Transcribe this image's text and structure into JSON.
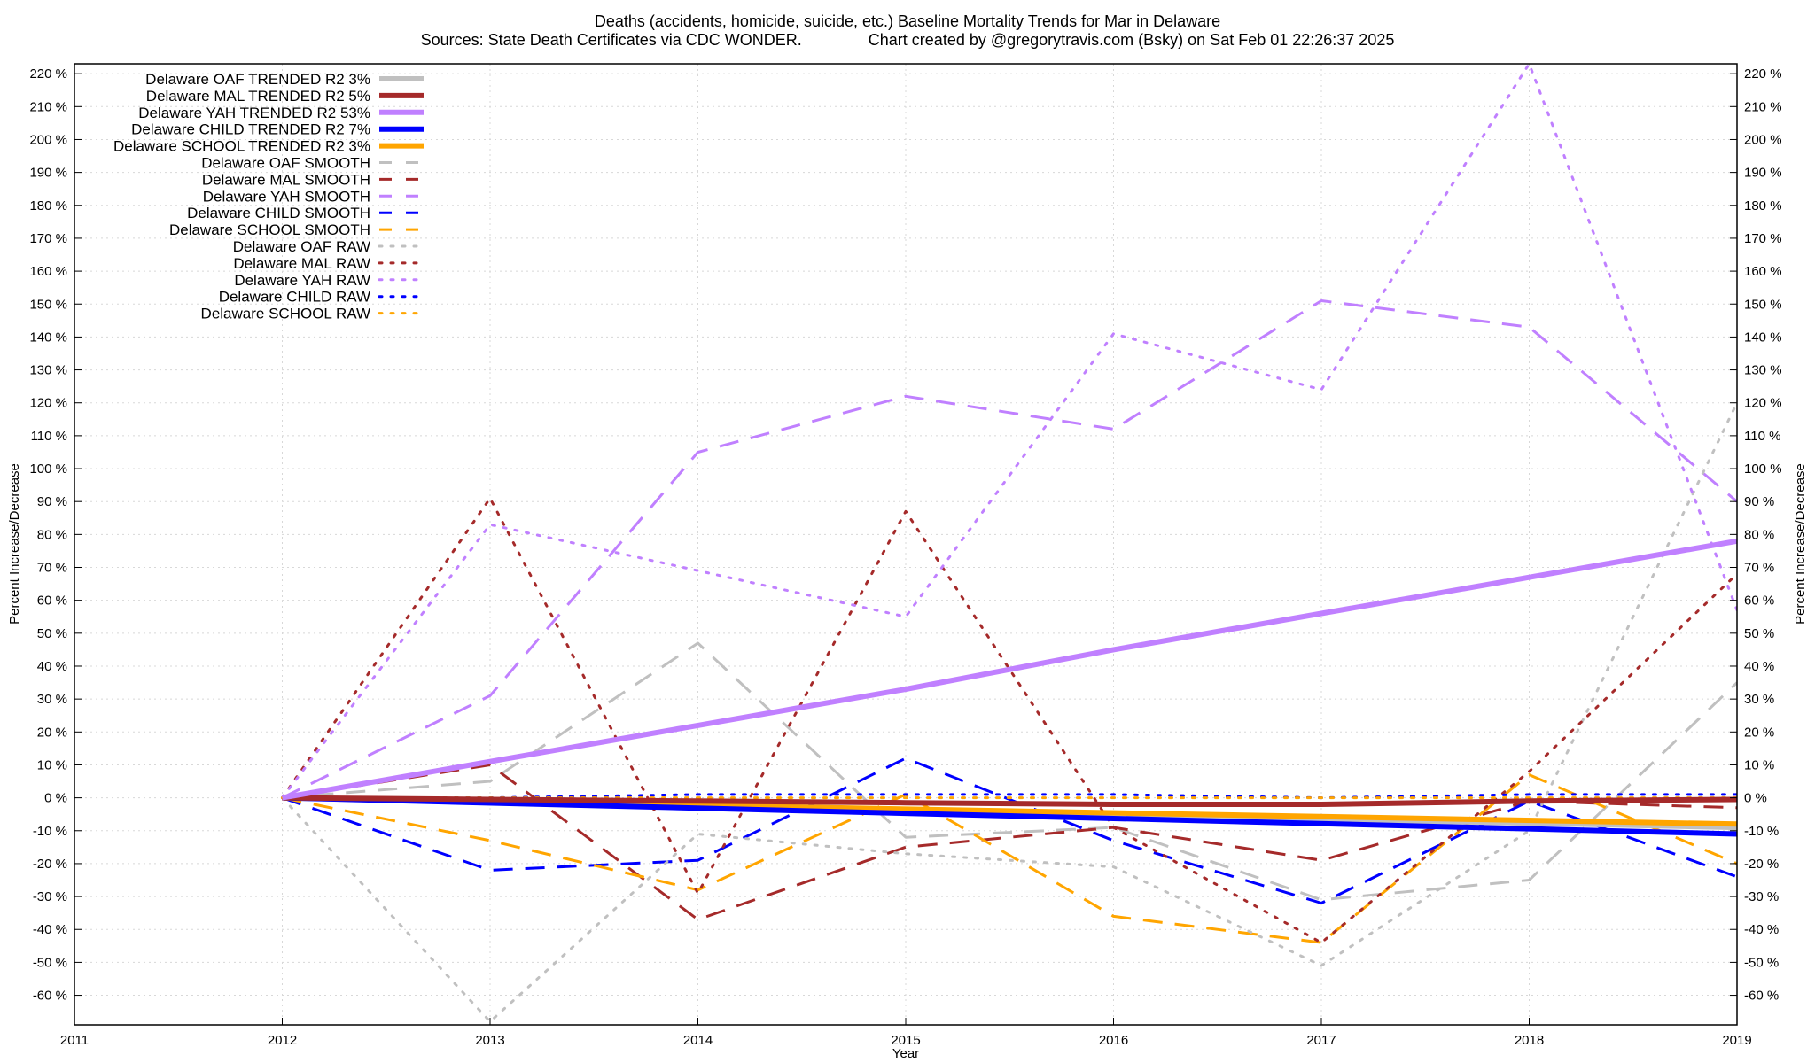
{
  "chart_data": {
    "type": "line",
    "title": "Deaths (accidents, homicide, suicide, etc.)  Baseline Mortality Trends for Mar in Delaware",
    "subtitle": "Sources: State Death Certificates via CDC WONDER.               Chart created by @gregorytravis.com (Bsky) on Sat Feb 01 22:26:37 2025",
    "xlabel": "Year",
    "ylabel": "Percent Increase/Decrease",
    "xlim": [
      2011,
      2019
    ],
    "ylim": [
      -69,
      223
    ],
    "x_ticks": [
      "2011",
      "2012",
      "2013",
      "2014",
      "2015",
      "2016",
      "2017",
      "2018",
      "2019"
    ],
    "y_ticks": [
      220,
      210,
      200,
      190,
      180,
      170,
      160,
      150,
      140,
      130,
      120,
      110,
      100,
      90,
      80,
      70,
      60,
      50,
      40,
      30,
      20,
      10,
      0,
      -10,
      -20,
      -30,
      -40,
      -50,
      -60
    ],
    "y_tick_suffix": " %",
    "grid": true,
    "legend_position": "top-left",
    "series": [
      {
        "name": "Delaware OAF TRENDED R2   3%",
        "style": "solid",
        "color": "#c0c0c0",
        "width": 6,
        "x": [
          2012,
          2019
        ],
        "y": [
          0,
          -9
        ]
      },
      {
        "name": "Delaware MAL TRENDED R2   5%",
        "style": "solid",
        "color": "#a52a2a",
        "width": 6,
        "x": [
          2012,
          2013,
          2014,
          2015,
          2016,
          2017,
          2018,
          2019
        ],
        "y": [
          0,
          -0.5,
          -1,
          -1.5,
          -2,
          -2,
          -1,
          -0.5
        ]
      },
      {
        "name": "Delaware YAH TRENDED R2  53%",
        "style": "solid",
        "color": "#c080ff",
        "width": 6,
        "x": [
          2012,
          2013,
          2014,
          2015,
          2016,
          2017,
          2018,
          2019
        ],
        "y": [
          0,
          11,
          22,
          33,
          45,
          56,
          67,
          78
        ]
      },
      {
        "name": "Delaware CHILD TRENDED R2   7%",
        "style": "solid",
        "color": "#0000ff",
        "width": 6,
        "x": [
          2012,
          2019
        ],
        "y": [
          0,
          -11
        ]
      },
      {
        "name": "Delaware SCHOOL TRENDED R2   3%",
        "style": "solid",
        "color": "#ffa500",
        "width": 6,
        "x": [
          2012,
          2019
        ],
        "y": [
          0,
          -8
        ]
      },
      {
        "name": "Delaware OAF SMOOTH",
        "style": "dashed",
        "color": "#c0c0c0",
        "width": 3,
        "x": [
          2012,
          2013,
          2014,
          2015,
          2016,
          2017,
          2018,
          2019
        ],
        "y": [
          0,
          5,
          47,
          -12,
          -9,
          -31,
          -25,
          35
        ]
      },
      {
        "name": "Delaware MAL SMOOTH",
        "style": "dashed",
        "color": "#a52a2a",
        "width": 3,
        "x": [
          2012,
          2013,
          2014,
          2015,
          2016,
          2017,
          2018,
          2019
        ],
        "y": [
          0,
          10,
          -37,
          -15,
          -9,
          -19,
          -1,
          -3
        ]
      },
      {
        "name": "Delaware YAH SMOOTH",
        "style": "dashed",
        "color": "#c080ff",
        "width": 3,
        "x": [
          2012,
          2013,
          2014,
          2015,
          2016,
          2017,
          2018,
          2019
        ],
        "y": [
          0,
          31,
          105,
          122,
          112,
          151,
          143,
          90
        ]
      },
      {
        "name": "Delaware CHILD SMOOTH",
        "style": "dashed",
        "color": "#0000ff",
        "width": 3,
        "x": [
          2012,
          2013,
          2014,
          2015,
          2016,
          2017,
          2018,
          2019
        ],
        "y": [
          0,
          -22,
          -19,
          12,
          -13,
          -32,
          -1,
          -24
        ]
      },
      {
        "name": "Delaware SCHOOL SMOOTH",
        "style": "dashed",
        "color": "#ffa500",
        "width": 3,
        "x": [
          2012,
          2013,
          2014,
          2015,
          2016,
          2017,
          2018,
          2019
        ],
        "y": [
          0,
          -13,
          -28,
          1,
          -36,
          -44,
          7,
          -20
        ]
      },
      {
        "name": "Delaware OAF RAW",
        "style": "dotted",
        "color": "#c0c0c0",
        "width": 3,
        "x": [
          2012,
          2013,
          2014,
          2015,
          2016,
          2017,
          2018,
          2019
        ],
        "y": [
          0,
          -68,
          -11,
          -17,
          -21,
          -51,
          -10,
          120
        ]
      },
      {
        "name": "Delaware MAL RAW",
        "style": "dotted",
        "color": "#a52a2a",
        "width": 3,
        "x": [
          2012,
          2013,
          2014,
          2015,
          2016,
          2017,
          2018,
          2019
        ],
        "y": [
          0,
          91,
          -29,
          87,
          -9,
          -44,
          8,
          68
        ]
      },
      {
        "name": "Delaware YAH RAW",
        "style": "dotted",
        "color": "#c080ff",
        "width": 3,
        "x": [
          2012,
          2013,
          2014,
          2015,
          2016,
          2017,
          2018,
          2019
        ],
        "y": [
          0,
          83,
          69,
          55,
          141,
          124,
          223,
          57
        ]
      },
      {
        "name": "Delaware CHILD RAW",
        "style": "dotted",
        "color": "#0000ff",
        "width": 3,
        "x": [
          2012,
          2013,
          2014,
          2015,
          2016,
          2017,
          2018,
          2019
        ],
        "y": [
          0,
          0,
          1,
          1,
          1,
          0,
          1,
          1
        ]
      },
      {
        "name": "Delaware SCHOOL RAW",
        "style": "dotted",
        "color": "#ffa500",
        "width": 3,
        "x": [
          2012,
          2013,
          2014,
          2015,
          2016,
          2017,
          2018,
          2019
        ],
        "y": [
          0,
          0,
          0,
          0,
          0,
          0,
          0,
          0
        ]
      }
    ]
  }
}
